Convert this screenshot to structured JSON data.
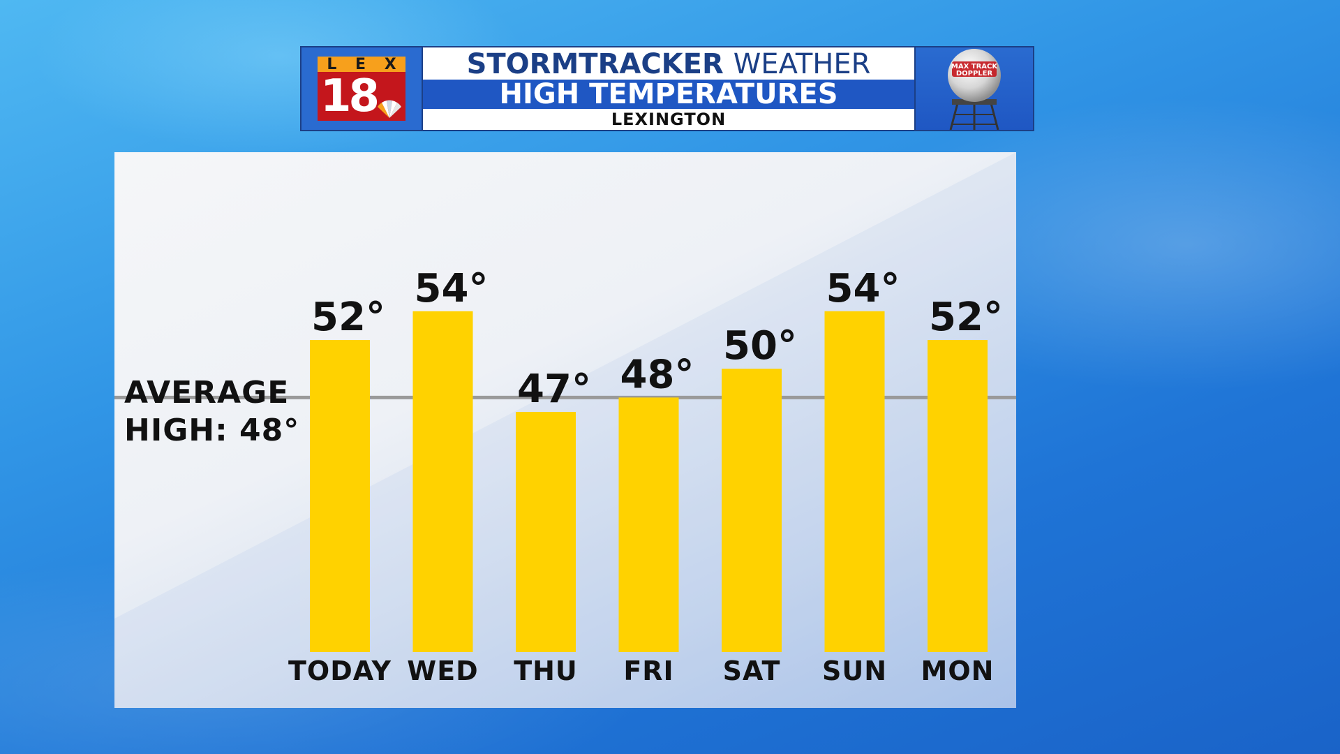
{
  "header": {
    "logo_letters": [
      "L",
      "E",
      "X"
    ],
    "logo_number": "18",
    "title_line1_a": "STORMTRACKER",
    "title_line1_b": "WEATHER",
    "title_line2": "HIGH TEMPERATURES",
    "title_line3": "LEXINGTON",
    "doppler_line1": "MAX TRACK",
    "doppler_line2": "DOPPLER"
  },
  "average": {
    "line1": "AVERAGE",
    "line2": "HIGH: 48°"
  },
  "chart_data": {
    "type": "bar",
    "title": "HIGH TEMPERATURES",
    "categories": [
      "TODAY",
      "WED",
      "THU",
      "FRI",
      "SAT",
      "SUN",
      "MON"
    ],
    "values": [
      52,
      54,
      47,
      48,
      50,
      54,
      52
    ],
    "value_labels": [
      "52°",
      "54°",
      "47°",
      "48°",
      "50°",
      "54°",
      "52°"
    ],
    "reference_line": 48,
    "xlabel": "",
    "ylabel": "",
    "bar_color": "#ffd200",
    "reference_line_color": "#9a9a9a",
    "grid": false
  }
}
